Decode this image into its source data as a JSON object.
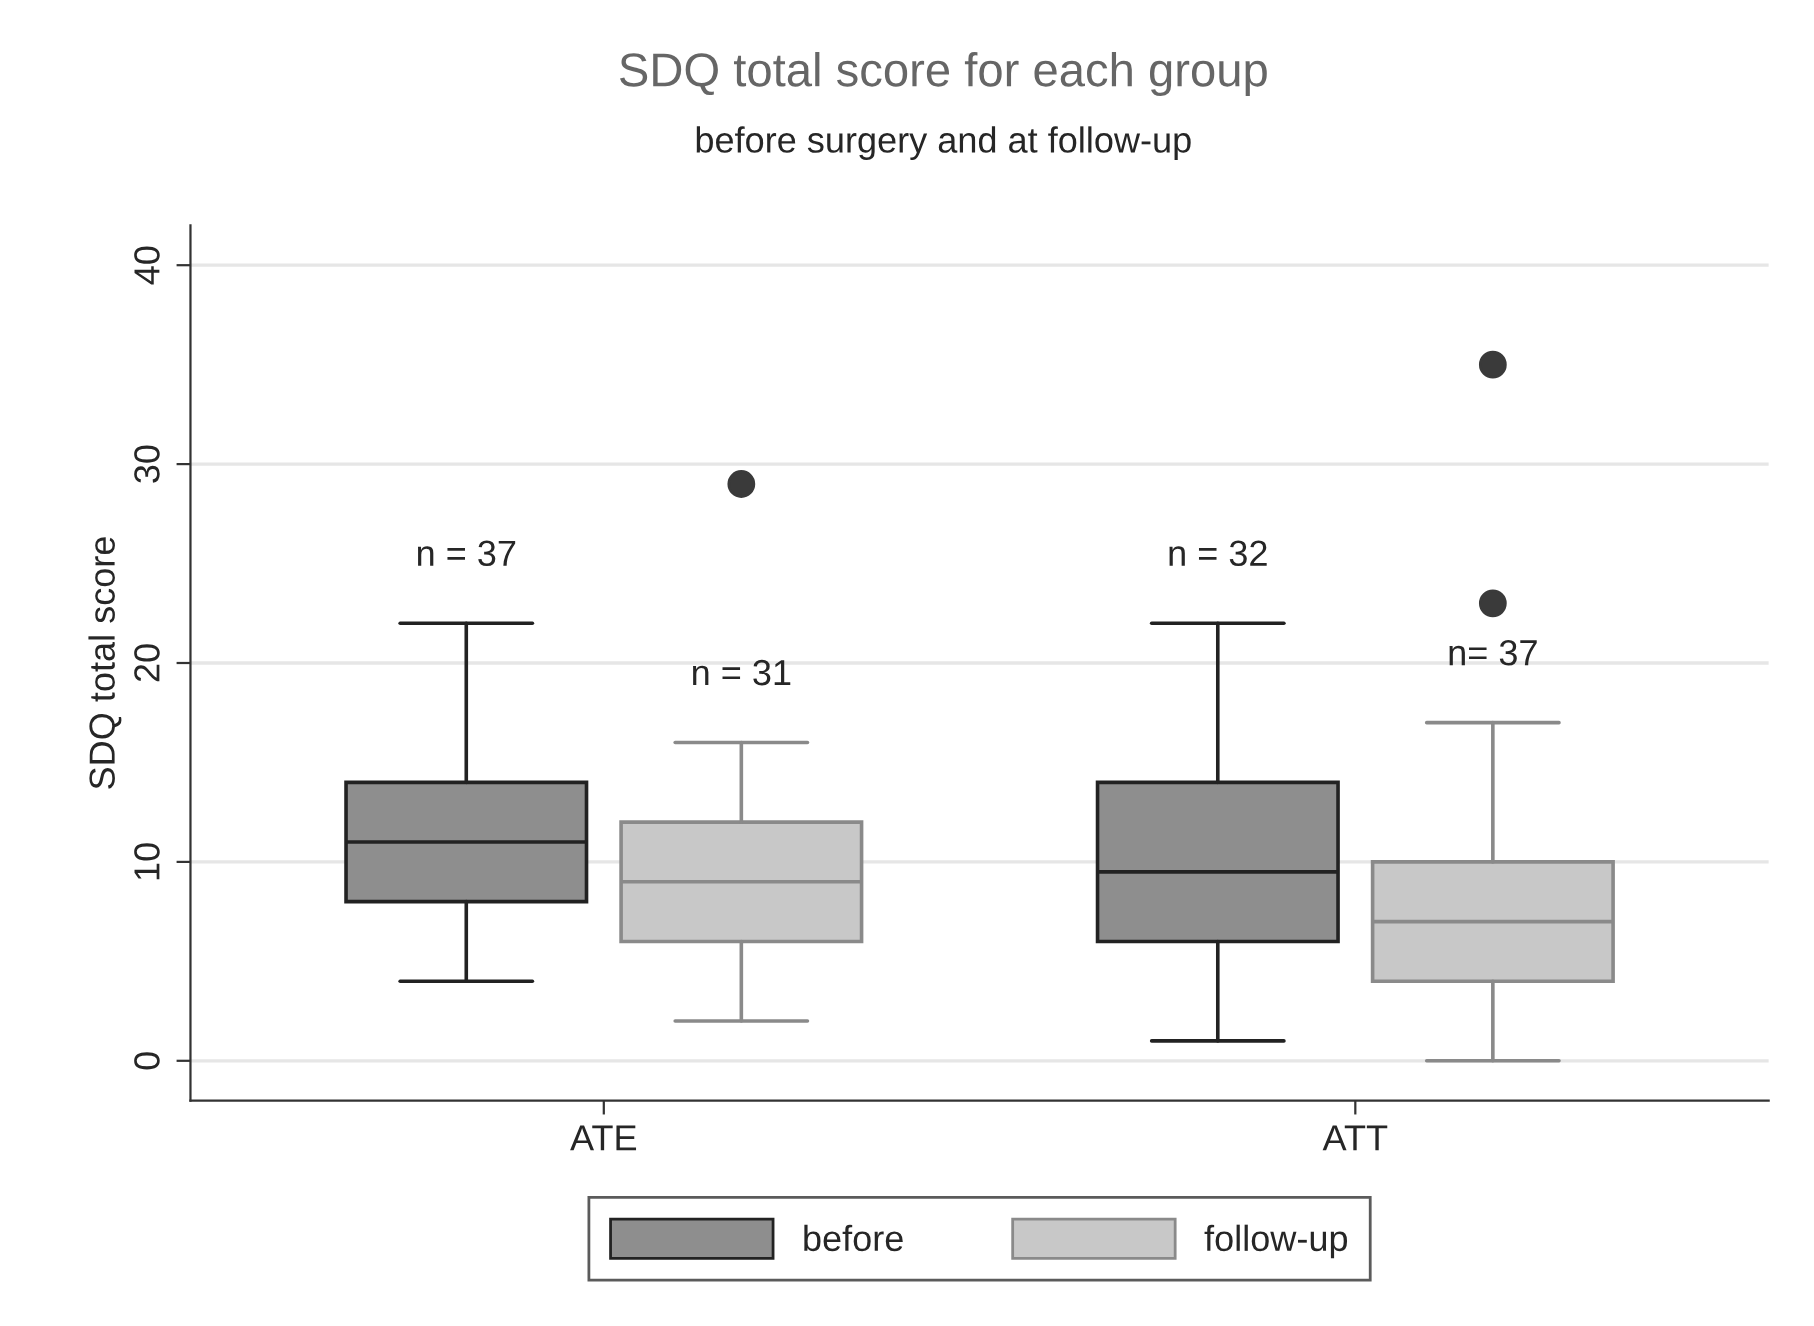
{
  "chart_data": {
    "type": "box",
    "title": "SDQ total score for each group",
    "subtitle": "before surgery and at follow-up",
    "ylabel": "SDQ total score",
    "categories": [
      "ATE",
      "ATT"
    ],
    "series": [
      {
        "name": "before",
        "color": "#8e8e8e",
        "boxes": [
          {
            "low": 4,
            "q1": 8,
            "median": 11,
            "q3": 14,
            "high": 22
          },
          {
            "low": 1,
            "q1": 6,
            "median": 9.5,
            "q3": 14,
            "high": 22
          }
        ]
      },
      {
        "name": "follow-up",
        "color": "#c8c8c8",
        "boxes": [
          {
            "low": 2,
            "q1": 6,
            "median": 9,
            "q3": 12,
            "high": 16,
            "outliers": [
              29
            ]
          },
          {
            "low": 0,
            "q1": 4,
            "median": 7,
            "q3": 10,
            "high": 17,
            "outliers": [
              23,
              35
            ]
          }
        ]
      }
    ],
    "ylim": [
      -2,
      42
    ],
    "yticks": [
      0,
      10,
      20,
      30,
      40
    ],
    "grid": "y",
    "legend": "bottom",
    "annotations": [
      "n = 37",
      "n = 31",
      "n = 32",
      "n= 37"
    ]
  }
}
